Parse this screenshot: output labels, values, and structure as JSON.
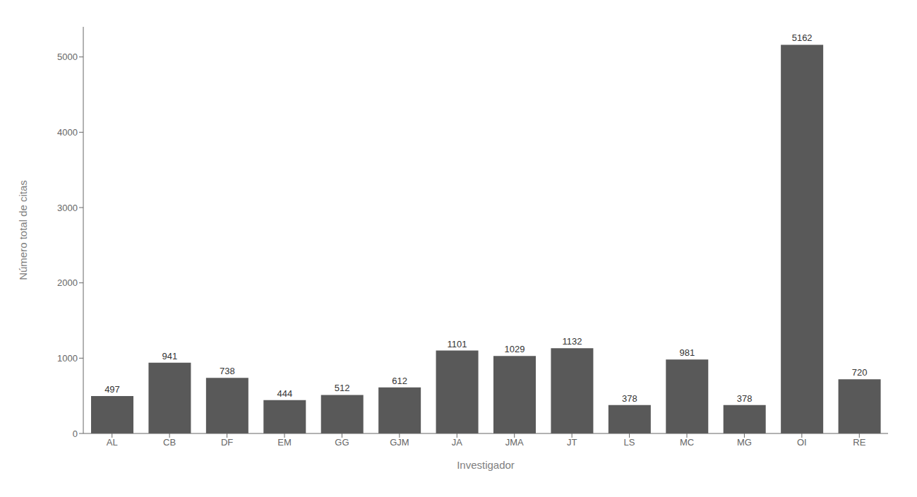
{
  "chart_data": {
    "type": "bar",
    "categories": [
      "AL",
      "CB",
      "DF",
      "EM",
      "GG",
      "GJM",
      "JA",
      "JMA",
      "JT",
      "LS",
      "MC",
      "MG",
      "OI",
      "RE"
    ],
    "values": [
      497,
      941,
      738,
      444,
      512,
      612,
      1101,
      1029,
      1132,
      378,
      981,
      378,
      5162,
      720
    ],
    "color": "#595959",
    "xlabel": "Investigador",
    "ylabel": "Número total de citas",
    "ylim": [
      0,
      5400
    ],
    "yticks": [
      0,
      1000,
      2000,
      3000,
      4000,
      5000
    ],
    "grid": false,
    "data_labels": true
  }
}
